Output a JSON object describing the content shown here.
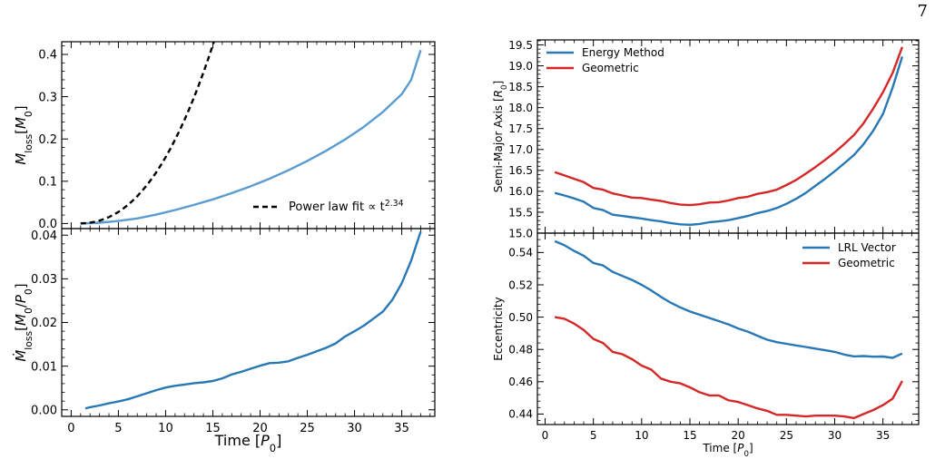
{
  "page_number": "7",
  "colors": {
    "blue": "#2878b5",
    "lightblue": "#5b9bd0",
    "red": "#d62728",
    "black": "#000000"
  },
  "chart_data": [
    {
      "id": "mloss",
      "type": "line",
      "ylabel": "M_loss[M_0]",
      "xlim": [
        -1,
        38.5
      ],
      "ylim": [
        -0.012,
        0.43
      ],
      "yticks": [
        0.0,
        0.1,
        0.2,
        0.3,
        0.4
      ],
      "ytick_labels": [
        "0.0",
        "0.1",
        "0.2",
        "0.3",
        "0.4"
      ],
      "legend_position": "bottom-right",
      "series": [
        {
          "name": "",
          "color": "#5b9bd0",
          "dash": "",
          "x": [
            1,
            3,
            5,
            7,
            9,
            11,
            13,
            15,
            17,
            19,
            21,
            23,
            25,
            27,
            29,
            31,
            33,
            35,
            36,
            37
          ],
          "y": [
            0.0,
            0.002,
            0.006,
            0.012,
            0.021,
            0.032,
            0.044,
            0.057,
            0.072,
            0.088,
            0.106,
            0.126,
            0.148,
            0.172,
            0.199,
            0.229,
            0.264,
            0.306,
            0.34,
            0.41
          ]
        },
        {
          "name": "Power law fit ∝ t^2.34",
          "legend_text": "Power law fit ∝ t",
          "legend_sup": "2.34",
          "color": "#000000",
          "dash": "6,4",
          "fit": {
            "a": 0.000809,
            "p": 2.34,
            "from": 1,
            "to": 37
          }
        }
      ]
    },
    {
      "id": "mdot",
      "type": "line",
      "ylabel": "Ṁ_loss[M_0/P_0]",
      "xlabel": "Time [P_0]",
      "xlim": [
        -1,
        38.5
      ],
      "ylim": [
        -0.0015,
        0.0415
      ],
      "xticks": [
        0,
        5,
        10,
        15,
        20,
        25,
        30,
        35
      ],
      "xtick_labels": [
        "0",
        "5",
        "10",
        "15",
        "20",
        "25",
        "30",
        "35"
      ],
      "yticks": [
        0.0,
        0.01,
        0.02,
        0.03,
        0.04
      ],
      "ytick_labels": [
        "0.00",
        "0.01",
        "0.02",
        "0.03",
        "0.04"
      ],
      "series": [
        {
          "name": "",
          "color": "#2878b5",
          "dash": "",
          "x": [
            1.5,
            2,
            3,
            4,
            5,
            6,
            7,
            8,
            9,
            10,
            11,
            12,
            13,
            14,
            15,
            16,
            17,
            18,
            19,
            20,
            21,
            22,
            23,
            24,
            25,
            26,
            27,
            28,
            29,
            30,
            31,
            32,
            33,
            34,
            35,
            36,
            37
          ],
          "y": [
            0.0003,
            0.0006,
            0.001,
            0.0015,
            0.0019,
            0.0024,
            0.0031,
            0.0038,
            0.0045,
            0.0051,
            0.0055,
            0.0058,
            0.0061,
            0.0063,
            0.0066,
            0.0072,
            0.0081,
            0.0087,
            0.0094,
            0.0101,
            0.0107,
            0.0108,
            0.0111,
            0.0119,
            0.0126,
            0.0134,
            0.0142,
            0.0152,
            0.0168,
            0.018,
            0.0193,
            0.0209,
            0.0225,
            0.0252,
            0.029,
            0.0342,
            0.0408
          ]
        }
      ]
    },
    {
      "id": "sma",
      "type": "line",
      "ylabel": "Semi-Major Axis [R_0]",
      "xlim": [
        -0.8,
        38.7
      ],
      "ylim": [
        15.0,
        19.62
      ],
      "yticks": [
        15.0,
        15.5,
        16.0,
        16.5,
        17.0,
        17.5,
        18.0,
        18.5,
        19.0,
        19.5
      ],
      "ytick_labels": [
        "15.0",
        "15.5",
        "16.0",
        "16.5",
        "17.0",
        "17.5",
        "18.0",
        "18.5",
        "19.0",
        "19.5"
      ],
      "legend_position": "top-left",
      "series": [
        {
          "name": "Energy Method",
          "color": "#2878b5",
          "dash": "",
          "x": [
            1,
            2,
            3,
            4,
            5,
            6,
            7,
            8,
            9,
            10,
            11,
            12,
            13,
            14,
            15,
            16,
            17,
            18,
            19,
            20,
            21,
            22,
            23,
            24,
            25,
            26,
            27,
            28,
            29,
            30,
            31,
            32,
            33,
            34,
            35,
            36,
            37
          ],
          "y": [
            15.96,
            15.9,
            15.83,
            15.75,
            15.6,
            15.55,
            15.44,
            15.41,
            15.38,
            15.35,
            15.31,
            15.28,
            15.24,
            15.21,
            15.2,
            15.22,
            15.26,
            15.28,
            15.31,
            15.36,
            15.41,
            15.48,
            15.53,
            15.6,
            15.7,
            15.82,
            15.96,
            16.13,
            16.3,
            16.48,
            16.67,
            16.87,
            17.13,
            17.45,
            17.85,
            18.48,
            19.22
          ]
        },
        {
          "name": "Geometric",
          "color": "#d62728",
          "dash": "",
          "x": [
            1,
            2,
            3,
            4,
            5,
            6,
            7,
            8,
            9,
            10,
            11,
            12,
            13,
            14,
            15,
            16,
            17,
            18,
            19,
            20,
            21,
            22,
            23,
            24,
            25,
            26,
            27,
            28,
            29,
            30,
            31,
            32,
            33,
            34,
            35,
            36,
            37
          ],
          "y": [
            16.46,
            16.38,
            16.3,
            16.22,
            16.08,
            16.04,
            15.95,
            15.9,
            15.85,
            15.84,
            15.8,
            15.77,
            15.72,
            15.68,
            15.67,
            15.69,
            15.73,
            15.74,
            15.78,
            15.84,
            15.87,
            15.94,
            15.98,
            16.04,
            16.15,
            16.27,
            16.42,
            16.58,
            16.75,
            16.93,
            17.13,
            17.35,
            17.63,
            17.98,
            18.37,
            18.83,
            19.45
          ]
        }
      ]
    },
    {
      "id": "ecc",
      "type": "line",
      "ylabel": "Eccentricity",
      "xlabel": "Time [P_0]",
      "xlim": [
        -0.8,
        38.7
      ],
      "ylim": [
        0.4335,
        0.552
      ],
      "xticks": [
        0,
        5,
        10,
        15,
        20,
        25,
        30,
        35
      ],
      "xtick_labels": [
        "0",
        "5",
        "10",
        "15",
        "20",
        "25",
        "30",
        "35"
      ],
      "yticks": [
        0.44,
        0.46,
        0.48,
        0.5,
        0.52,
        0.54
      ],
      "ytick_labels": [
        "0.44",
        "0.46",
        "0.48",
        "0.50",
        "0.52",
        "0.54"
      ],
      "legend_position": "top-right",
      "series": [
        {
          "name": "LRL Vector",
          "color": "#2878b5",
          "dash": "",
          "x": [
            1,
            2,
            3,
            4,
            5,
            6,
            7,
            8,
            9,
            10,
            11,
            12,
            13,
            14,
            15,
            16,
            17,
            18,
            19,
            20,
            21,
            22,
            23,
            24,
            25,
            26,
            27,
            28,
            29,
            30,
            31,
            32,
            33,
            34,
            35,
            36,
            37
          ],
          "y": [
            0.547,
            0.5445,
            0.541,
            0.538,
            0.5335,
            0.532,
            0.528,
            0.5255,
            0.523,
            0.52,
            0.5165,
            0.5125,
            0.509,
            0.506,
            0.5035,
            0.5015,
            0.4995,
            0.4975,
            0.4955,
            0.493,
            0.491,
            0.4885,
            0.486,
            0.4845,
            0.4835,
            0.4825,
            0.4815,
            0.4805,
            0.4795,
            0.4785,
            0.4768,
            0.4757,
            0.4759,
            0.4755,
            0.4756,
            0.4748,
            0.4775
          ]
        },
        {
          "name": "Geometric",
          "color": "#d62728",
          "dash": "",
          "x": [
            1,
            2,
            3,
            4,
            5,
            6,
            7,
            8,
            9,
            10,
            11,
            12,
            13,
            14,
            15,
            16,
            17,
            18,
            19,
            20,
            21,
            22,
            23,
            24,
            25,
            26,
            27,
            28,
            29,
            30,
            31,
            32,
            33,
            34,
            35,
            36,
            37
          ],
          "y": [
            0.5,
            0.499,
            0.496,
            0.492,
            0.4865,
            0.484,
            0.4785,
            0.477,
            0.474,
            0.47,
            0.4675,
            0.462,
            0.46,
            0.459,
            0.4565,
            0.4535,
            0.4515,
            0.4515,
            0.4485,
            0.4475,
            0.4455,
            0.4435,
            0.442,
            0.4395,
            0.4395,
            0.439,
            0.4385,
            0.439,
            0.439,
            0.439,
            0.4385,
            0.4375,
            0.44,
            0.4425,
            0.4455,
            0.4495,
            0.4605
          ]
        }
      ]
    }
  ]
}
